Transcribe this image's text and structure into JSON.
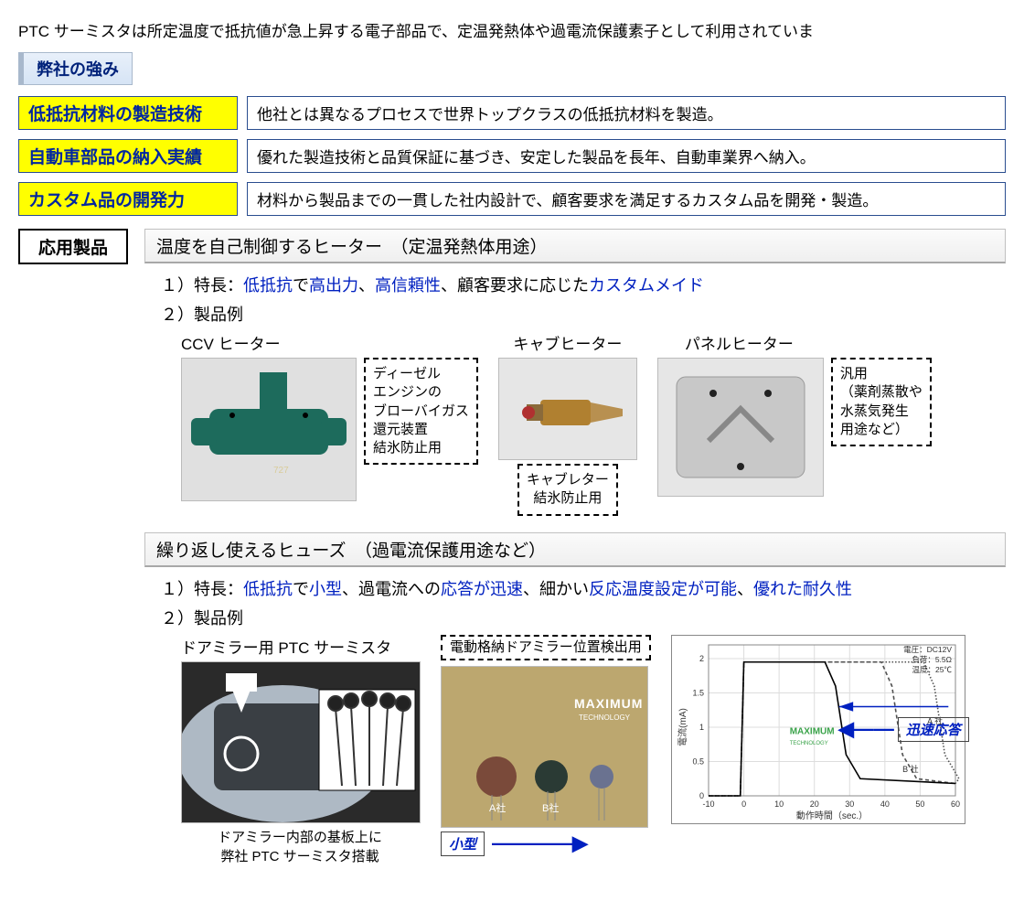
{
  "intro": "PTC サーミスタは所定温度で抵抗値が急上昇する電子部品で、定温発熱体や過電流保護素子として利用されていま",
  "strengths_title": "弊社の強み",
  "strengths": [
    {
      "label": "低抵抗材料の製造技術",
      "desc": "他社とは異なるプロセスで世界トップクラスの低抵抗材料を製造。"
    },
    {
      "label": "自動車部品の納入実績",
      "desc": "優れた製造技術と品質保証に基づき、安定した製品を長年、自動車業界へ納入。"
    },
    {
      "label": "カスタム品の開発力",
      "desc": "材料から製品までの一貫した社内設計で、顧客要求を満足するカスタム品を開発・製造。"
    }
  ],
  "app_label": "応用製品",
  "app1": {
    "header": "温度を自己制御するヒーター　（定温発熱体用途）",
    "feature_prefix": "１）特長：",
    "feature_segments": [
      {
        "t": "低抵抗",
        "blue": true
      },
      {
        "t": "で"
      },
      {
        "t": "高出力",
        "blue": true
      },
      {
        "t": "、"
      },
      {
        "t": "高信頼性",
        "blue": true
      },
      {
        "t": "、顧客要求に応じた"
      },
      {
        "t": "カスタムメイド",
        "blue": true
      }
    ],
    "examples_label": "２）製品例",
    "p1": {
      "title": "CCV ヒーター",
      "note": "ディーゼル\nエンジンの\nブローバイガス\n還元装置\n結氷防止用"
    },
    "p2": {
      "title": "キャブヒーター",
      "note": "キャブレター\n結氷防止用"
    },
    "p3": {
      "title": "パネルヒーター",
      "note": "汎用\n（薬剤蒸散や\n水蒸気発生\n用途など）"
    }
  },
  "app2": {
    "header": "繰り返し使えるヒューズ　（過電流保護用途など）",
    "feature_prefix": "１）特長：",
    "feature_segments": [
      {
        "t": "低抵抗",
        "blue": true
      },
      {
        "t": "で"
      },
      {
        "t": "小型",
        "blue": true
      },
      {
        "t": "、過電流への"
      },
      {
        "t": "応答が迅速",
        "blue": true
      },
      {
        "t": "、細かい"
      },
      {
        "t": "反応温度設定が可能",
        "blue": true
      },
      {
        "t": "、"
      },
      {
        "t": "優れた耐久性",
        "blue": true
      }
    ],
    "examples_label": "２）製品例",
    "p1": {
      "title": "ドアミラー用 PTC サーミスタ",
      "caption": "ドアミラー内部の基板上に\n弊社 PTC サーミスタ搭載"
    },
    "comparison_note": "電動格納ドアミラー位置検出用",
    "company_a": "A社",
    "company_b": "B社",
    "brand": "MAXIMUM",
    "brand_sub": "TECHNOLOGY",
    "callout_small": "小型",
    "callout_fast": "迅速応答",
    "chart": {
      "cond": [
        "電圧：DC12V",
        "負荷：5.5Ω",
        "温度：25℃"
      ],
      "ylabel": "電流(mA)",
      "xlabel": "動作時間（sec.）",
      "xticks": [
        "-10",
        "0",
        "10",
        "20",
        "30",
        "40",
        "50",
        "60"
      ],
      "yticks": [
        "0",
        "0.5",
        "1",
        "1.5",
        "2"
      ],
      "curves": {
        "maximum": {
          "color": "#000000",
          "dash": "none",
          "drop_x": 26
        },
        "b": {
          "color": "#505050",
          "dash": "4 3",
          "drop_x": 42,
          "label": "B 社"
        },
        "a": {
          "color": "#505050",
          "dash": "1.5 2",
          "drop_x": 54,
          "label": "A 社"
        }
      },
      "brand_color": "#3aa34a"
    }
  },
  "colors": {
    "blue_text": "#0020c0",
    "yellow_bg": "#ffff00",
    "header_grad_top": "#e8f0fa",
    "header_grad_bot": "#d6e4f5"
  }
}
